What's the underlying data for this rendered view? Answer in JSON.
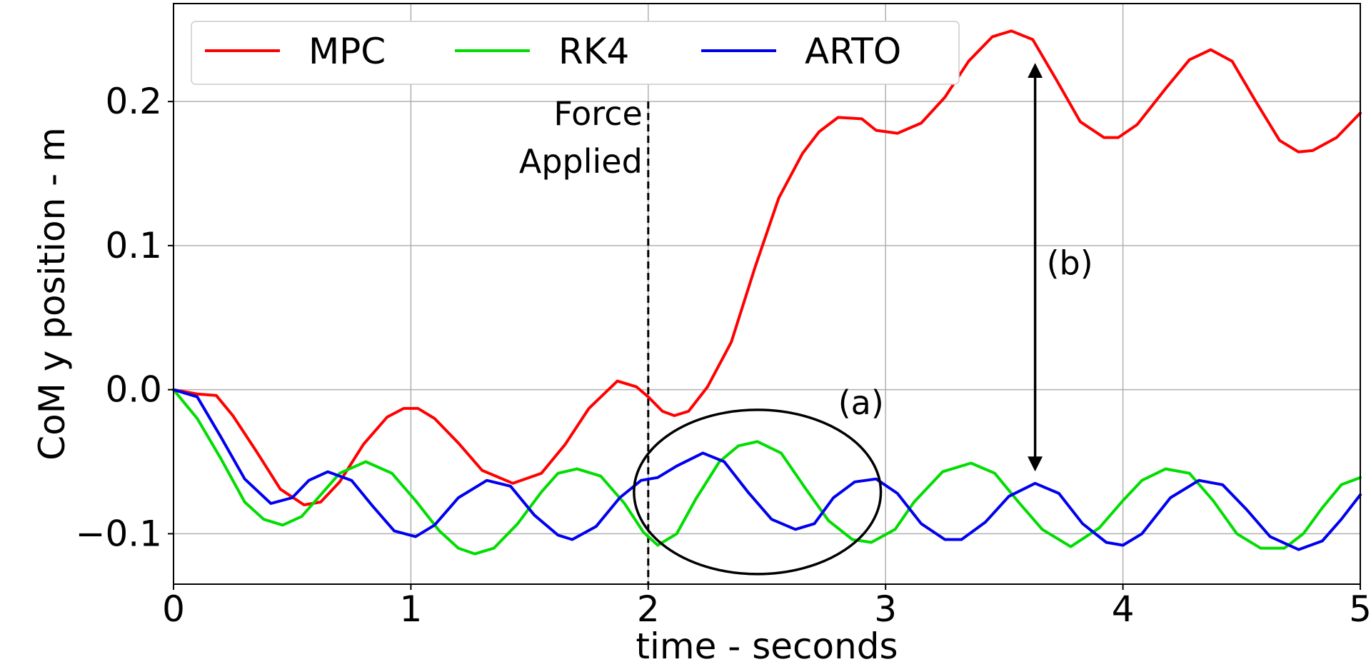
{
  "chart_data": {
    "type": "line",
    "title": "",
    "xlabel": "time - seconds",
    "ylabel": "CoM y position - m",
    "xlim": [
      0,
      5
    ],
    "ylim": [
      -0.135,
      0.268
    ],
    "xticks": [
      0,
      1,
      2,
      3,
      4,
      5
    ],
    "xtick_labels": [
      "0",
      "1",
      "2",
      "3",
      "4",
      "5"
    ],
    "yticks": [
      -0.1,
      0.0,
      0.1,
      0.2
    ],
    "ytick_labels": [
      "−0.1",
      "0.0",
      "0.1",
      "0.2"
    ],
    "grid": true,
    "legend": {
      "placement": "top-left",
      "columns": 3
    },
    "series": [
      {
        "name": "MPC",
        "color": "#ff0000",
        "x": [
          0,
          0.1,
          0.18,
          0.25,
          0.35,
          0.45,
          0.55,
          0.62,
          0.7,
          0.8,
          0.9,
          0.97,
          1.03,
          1.1,
          1.2,
          1.3,
          1.43,
          1.55,
          1.65,
          1.75,
          1.87,
          1.95,
          2.0,
          2.06,
          2.11,
          2.17,
          2.25,
          2.35,
          2.45,
          2.55,
          2.65,
          2.72,
          2.8,
          2.9,
          2.96,
          3.05,
          3.15,
          3.25,
          3.35,
          3.45,
          3.53,
          3.62,
          3.72,
          3.82,
          3.92,
          3.98,
          4.06,
          4.18,
          4.28,
          4.37,
          4.46,
          4.56,
          4.66,
          4.74,
          4.8,
          4.9,
          5.0
        ],
        "values": [
          0.0,
          -0.003,
          -0.004,
          -0.018,
          -0.043,
          -0.069,
          -0.08,
          -0.078,
          -0.064,
          -0.038,
          -0.019,
          -0.013,
          -0.013,
          -0.02,
          -0.037,
          -0.056,
          -0.065,
          -0.058,
          -0.038,
          -0.013,
          0.006,
          0.002,
          -0.005,
          -0.015,
          -0.018,
          -0.015,
          0.002,
          0.033,
          0.085,
          0.133,
          0.164,
          0.179,
          0.189,
          0.188,
          0.18,
          0.178,
          0.185,
          0.203,
          0.228,
          0.245,
          0.249,
          0.243,
          0.215,
          0.186,
          0.175,
          0.175,
          0.184,
          0.209,
          0.229,
          0.236,
          0.228,
          0.2,
          0.173,
          0.165,
          0.166,
          0.175,
          0.192
        ]
      },
      {
        "name": "RK4",
        "color": "#00dd00",
        "x": [
          0,
          0.1,
          0.2,
          0.3,
          0.38,
          0.46,
          0.54,
          0.62,
          0.7,
          0.81,
          0.92,
          1.02,
          1.12,
          1.2,
          1.27,
          1.35,
          1.45,
          1.55,
          1.62,
          1.7,
          1.8,
          1.9,
          1.98,
          2.04,
          2.12,
          2.2,
          2.3,
          2.38,
          2.46,
          2.56,
          2.66,
          2.76,
          2.86,
          2.94,
          3.04,
          3.12,
          3.24,
          3.36,
          3.46,
          3.56,
          3.66,
          3.78,
          3.9,
          4.0,
          4.08,
          4.18,
          4.28,
          4.38,
          4.48,
          4.58,
          4.68,
          4.76,
          4.84,
          4.92,
          5.0
        ],
        "values": [
          0.0,
          -0.02,
          -0.048,
          -0.078,
          -0.09,
          -0.094,
          -0.088,
          -0.073,
          -0.058,
          -0.05,
          -0.058,
          -0.077,
          -0.098,
          -0.11,
          -0.114,
          -0.11,
          -0.093,
          -0.071,
          -0.058,
          -0.055,
          -0.06,
          -0.079,
          -0.099,
          -0.108,
          -0.1,
          -0.076,
          -0.05,
          -0.039,
          -0.036,
          -0.044,
          -0.068,
          -0.091,
          -0.104,
          -0.106,
          -0.097,
          -0.078,
          -0.057,
          -0.051,
          -0.058,
          -0.078,
          -0.097,
          -0.109,
          -0.096,
          -0.077,
          -0.063,
          -0.055,
          -0.058,
          -0.077,
          -0.1,
          -0.11,
          -0.11,
          -0.1,
          -0.082,
          -0.066,
          -0.061
        ]
      },
      {
        "name": "ARTO",
        "color": "#0000ee",
        "x": [
          0,
          0.1,
          0.2,
          0.3,
          0.41,
          0.5,
          0.57,
          0.65,
          0.75,
          0.84,
          0.93,
          1.02,
          1.1,
          1.2,
          1.32,
          1.42,
          1.52,
          1.62,
          1.68,
          1.78,
          1.88,
          1.97,
          2.04,
          2.12,
          2.23,
          2.32,
          2.42,
          2.52,
          2.62,
          2.7,
          2.78,
          2.87,
          2.96,
          3.05,
          3.15,
          3.25,
          3.32,
          3.42,
          3.52,
          3.63,
          3.73,
          3.83,
          3.93,
          4.0,
          4.08,
          4.2,
          4.32,
          4.42,
          4.52,
          4.62,
          4.74,
          4.84,
          4.92,
          5.0
        ],
        "values": [
          0.0,
          -0.005,
          -0.033,
          -0.062,
          -0.079,
          -0.075,
          -0.063,
          -0.057,
          -0.063,
          -0.081,
          -0.098,
          -0.102,
          -0.094,
          -0.075,
          -0.063,
          -0.067,
          -0.087,
          -0.101,
          -0.104,
          -0.095,
          -0.075,
          -0.063,
          -0.061,
          -0.053,
          -0.044,
          -0.05,
          -0.071,
          -0.09,
          -0.097,
          -0.093,
          -0.075,
          -0.064,
          -0.062,
          -0.072,
          -0.093,
          -0.104,
          -0.104,
          -0.092,
          -0.074,
          -0.065,
          -0.072,
          -0.093,
          -0.106,
          -0.108,
          -0.1,
          -0.075,
          -0.063,
          -0.066,
          -0.083,
          -0.102,
          -0.111,
          -0.105,
          -0.09,
          -0.073
        ]
      }
    ],
    "vline": {
      "x": 2.0,
      "style": "dashed",
      "label_line1": "Force",
      "label_line2": "Applied"
    },
    "annotations": [
      {
        "label": "(a)",
        "description_shape": "ellipse",
        "center_x": 2.46,
        "center_y": -0.071,
        "rx": 0.52,
        "ry": 0.057
      },
      {
        "label": "(b)",
        "description_shape": "double-arrow",
        "x": 3.63,
        "y_from": -0.06,
        "y_to": 0.23
      }
    ]
  }
}
